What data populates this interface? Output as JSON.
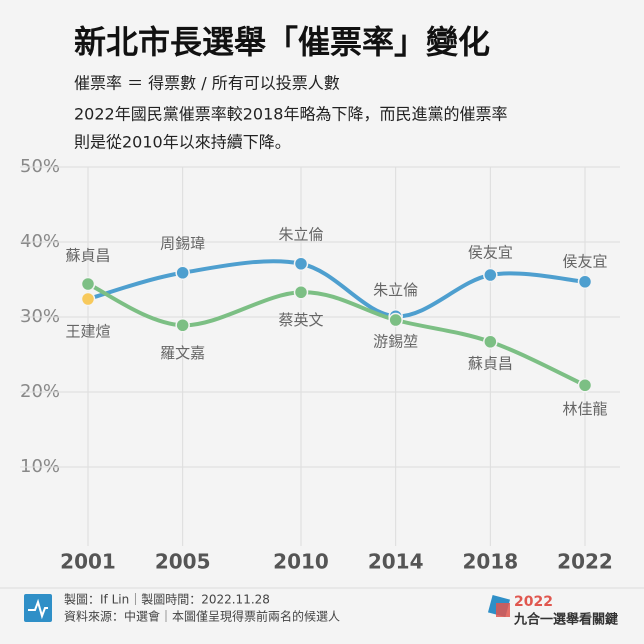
{
  "header": {
    "title": "新北市長選舉「催票率」變化",
    "formula": "催票率 ＝ 得票數 / 所有可以投票人數",
    "note_lines": [
      "2022年國民黨催票率較2018年略為下降，而民進黨的催票率",
      "則是從2010年以來持續下降。"
    ]
  },
  "chart_data": {
    "type": "line",
    "x": [
      2001,
      2005,
      2010,
      2014,
      2018,
      2022
    ],
    "series": [
      {
        "color": "#4e9fcf",
        "values": [
          32.4,
          35.9,
          37.1,
          30.1,
          35.6,
          34.7
        ],
        "labels": [
          "王建煊",
          "周錫瑋",
          "朱立倫",
          "朱立倫",
          "侯友宜",
          "侯友宜"
        ],
        "point_colors": [
          "#f7c95c",
          "#4e9fcf",
          "#4e9fcf",
          "#4e9fcf",
          "#4e9fcf",
          "#4e9fcf"
        ]
      },
      {
        "color": "#7cbf84",
        "values": [
          34.4,
          28.9,
          33.3,
          29.6,
          26.7,
          20.9
        ],
        "labels": [
          "蘇貞昌",
          "羅文嘉",
          "蔡英文",
          "游錫堃",
          "蘇貞昌",
          "林佳龍"
        ]
      }
    ],
    "xlim": [
      2001,
      2022
    ],
    "xticks": [
      2001,
      2005,
      2010,
      2014,
      2018,
      2022
    ],
    "ylim": [
      0,
      50
    ],
    "yticks": [
      {
        "value": 10,
        "label": "10%"
      },
      {
        "value": 20,
        "label": "20%"
      },
      {
        "value": 30,
        "label": "30%"
      },
      {
        "value": 40,
        "label": "40%"
      },
      {
        "value": 50,
        "label": "50%"
      }
    ],
    "grid": true
  },
  "footer": {
    "line1": "製圖：If Lin｜製圖時間：2022.11.28",
    "line2": "資料來源：中選會｜本圖僅呈現得票前兩名的候選人",
    "brand_year": "2022",
    "brand_name": "九合一選舉看關鍵"
  }
}
